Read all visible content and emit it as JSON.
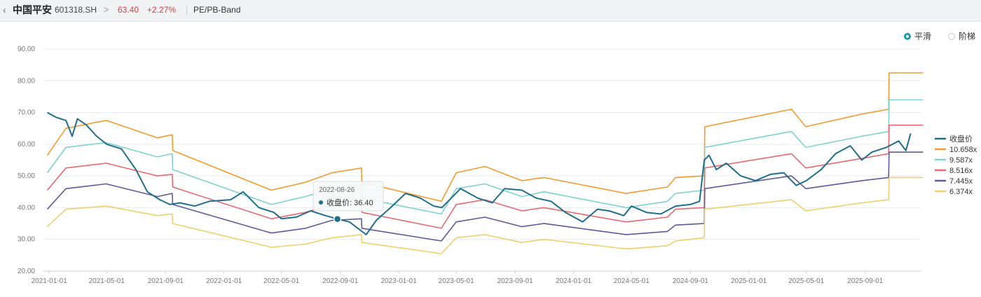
{
  "header": {
    "back_icon": "chevron-left-icon",
    "stock_name": "中国平安",
    "stock_code": "601318.SH",
    "chevron": ">",
    "price": "63.40",
    "change_pct": "+2.27%",
    "tool_name": "PE/PB-Band"
  },
  "toggle": {
    "smooth_label": "平滑",
    "step_label": "阶梯",
    "selected": "平滑"
  },
  "tooltip": {
    "date": "2022-08-26",
    "series_label": "收盘价",
    "value": "36.40",
    "at_x": "2022-08-26",
    "at_y": 36.4
  },
  "colors": {
    "price": "#1f6e8c",
    "band_10658": "#f29a2e",
    "band_9587": "#7fd0cf",
    "band_8516": "#e8696f",
    "band_7445": "#5b5a9b",
    "band_6374": "#efcf6c",
    "accent": "#1a9ab0",
    "up": "#e4393c"
  },
  "chart_data": {
    "type": "line",
    "title": "PE/PB-Band",
    "xlabel": "",
    "ylabel": "",
    "x_start": "2020-12-20",
    "x_end": "2025-12-26",
    "ylim": [
      20,
      90
    ],
    "yticks": [
      "20.00",
      "30.00",
      "40.00",
      "50.00",
      "60.00",
      "70.00",
      "80.00",
      "90.00"
    ],
    "xticks": [
      "2021-01-01",
      "2021-05-01",
      "2021-09-01",
      "2022-01-01",
      "2022-05-01",
      "2022-09-01",
      "2023-01-01",
      "2023-05-01",
      "2023-09-01",
      "2024-01-01",
      "2024-05-01",
      "2024-09-01",
      "2025-01-01",
      "2025-05-01",
      "2025-09-01"
    ],
    "grid": true,
    "legend_position": "right",
    "series": [
      {
        "name": "收盘价",
        "color": "#1f6e8c",
        "width": 2,
        "points": [
          [
            "2020-12-28",
            70.0
          ],
          [
            "2021-01-15",
            68.5
          ],
          [
            "2021-02-05",
            67.5
          ],
          [
            "2021-02-18",
            62.5
          ],
          [
            "2021-03-01",
            68.0
          ],
          [
            "2021-03-20",
            66.0
          ],
          [
            "2021-04-10",
            62.5
          ],
          [
            "2021-05-01",
            60.0
          ],
          [
            "2021-06-01",
            58.5
          ],
          [
            "2021-07-01",
            52.0
          ],
          [
            "2021-07-25",
            45.0
          ],
          [
            "2021-08-20",
            42.5
          ],
          [
            "2021-09-10",
            41.0
          ],
          [
            "2021-10-01",
            41.5
          ],
          [
            "2021-11-01",
            40.5
          ],
          [
            "2021-12-01",
            42.0
          ],
          [
            "2022-01-15",
            42.5
          ],
          [
            "2022-02-10",
            45.0
          ],
          [
            "2022-03-15",
            40.0
          ],
          [
            "2022-04-15",
            38.5
          ],
          [
            "2022-05-01",
            36.5
          ],
          [
            "2022-06-01",
            37.0
          ],
          [
            "2022-07-01",
            39.0
          ],
          [
            "2022-08-01",
            37.5
          ],
          [
            "2022-08-26",
            36.4
          ],
          [
            "2022-09-20",
            35.5
          ],
          [
            "2022-10-25",
            31.5
          ],
          [
            "2022-11-15",
            36.0
          ],
          [
            "2022-12-15",
            40.0
          ],
          [
            "2023-01-15",
            44.5
          ],
          [
            "2023-02-15",
            43.0
          ],
          [
            "2023-03-15",
            40.5
          ],
          [
            "2023-04-01",
            40.0
          ],
          [
            "2023-05-10",
            46.0
          ],
          [
            "2023-06-15",
            43.0
          ],
          [
            "2023-07-15",
            41.5
          ],
          [
            "2023-08-10",
            46.0
          ],
          [
            "2023-09-15",
            45.5
          ],
          [
            "2023-10-15",
            43.0
          ],
          [
            "2023-11-15",
            42.0
          ],
          [
            "2023-12-15",
            38.5
          ],
          [
            "2024-01-20",
            35.5
          ],
          [
            "2024-02-20",
            39.5
          ],
          [
            "2024-03-15",
            39.0
          ],
          [
            "2024-04-15",
            37.5
          ],
          [
            "2024-05-01",
            40.5
          ],
          [
            "2024-06-01",
            38.5
          ],
          [
            "2024-07-01",
            38.0
          ],
          [
            "2024-08-01",
            40.5
          ],
          [
            "2024-09-01",
            41.0
          ],
          [
            "2024-09-20",
            42.0
          ],
          [
            "2024-09-30",
            55.0
          ],
          [
            "2024-10-10",
            56.5
          ],
          [
            "2024-10-25",
            52.0
          ],
          [
            "2024-11-15",
            54.0
          ],
          [
            "2024-12-15",
            50.0
          ],
          [
            "2025-01-15",
            48.5
          ],
          [
            "2025-02-15",
            50.5
          ],
          [
            "2025-03-15",
            51.0
          ],
          [
            "2025-04-10",
            47.0
          ],
          [
            "2025-05-01",
            48.5
          ],
          [
            "2025-06-01",
            52.0
          ],
          [
            "2025-07-01",
            57.0
          ],
          [
            "2025-08-01",
            59.5
          ],
          [
            "2025-08-25",
            55.0
          ],
          [
            "2025-09-15",
            57.5
          ],
          [
            "2025-10-15",
            59.0
          ],
          [
            "2025-11-10",
            61.0
          ],
          [
            "2025-11-25",
            58.0
          ],
          [
            "2025-12-05",
            63.4
          ]
        ]
      },
      {
        "name": "10.658x",
        "color": "#f29a2e",
        "width": 1.6,
        "points": [
          [
            "2020-12-28",
            56.5
          ],
          [
            "2021-02-05",
            65.0
          ],
          [
            "2021-04-30",
            67.5
          ],
          [
            "2021-08-15",
            62.0
          ],
          [
            "2021-09-15",
            63.0
          ],
          [
            "2021-09-16",
            58.0
          ],
          [
            "2022-04-10",
            45.5
          ],
          [
            "2022-06-20",
            48.0
          ],
          [
            "2022-08-15",
            51.0
          ],
          [
            "2022-10-15",
            52.5
          ],
          [
            "2022-10-16",
            48.0
          ],
          [
            "2023-03-31",
            42.0
          ],
          [
            "2023-05-01",
            51.0
          ],
          [
            "2023-06-30",
            53.0
          ],
          [
            "2023-09-15",
            48.5
          ],
          [
            "2023-10-31",
            49.5
          ],
          [
            "2024-04-20",
            44.5
          ],
          [
            "2024-07-15",
            46.5
          ],
          [
            "2024-08-01",
            49.5
          ],
          [
            "2024-09-30",
            50.0
          ],
          [
            "2024-10-01",
            65.5
          ],
          [
            "2025-03-31",
            71.0
          ],
          [
            "2025-04-30",
            65.5
          ],
          [
            "2025-08-25",
            69.5
          ],
          [
            "2025-10-20",
            71.0
          ],
          [
            "2025-10-21",
            82.5
          ],
          [
            "2025-12-31",
            82.5
          ]
        ]
      },
      {
        "name": "9.587x",
        "color": "#7fd0cf",
        "width": 1.6,
        "points": [
          [
            "2020-12-28",
            51.0
          ],
          [
            "2021-02-05",
            59.0
          ],
          [
            "2021-04-30",
            60.5
          ],
          [
            "2021-08-15",
            56.0
          ],
          [
            "2021-09-15",
            57.0
          ],
          [
            "2021-09-16",
            52.0
          ],
          [
            "2022-04-10",
            41.0
          ],
          [
            "2022-06-20",
            43.5
          ],
          [
            "2022-08-15",
            46.0
          ],
          [
            "2022-10-15",
            47.5
          ],
          [
            "2022-10-16",
            43.0
          ],
          [
            "2023-03-31",
            38.0
          ],
          [
            "2023-05-01",
            46.0
          ],
          [
            "2023-06-30",
            47.5
          ],
          [
            "2023-09-15",
            43.5
          ],
          [
            "2023-10-31",
            45.0
          ],
          [
            "2024-04-20",
            40.0
          ],
          [
            "2024-07-15",
            42.0
          ],
          [
            "2024-08-01",
            44.5
          ],
          [
            "2024-09-30",
            45.5
          ],
          [
            "2024-10-01",
            59.0
          ],
          [
            "2025-03-31",
            64.0
          ],
          [
            "2025-04-30",
            59.0
          ],
          [
            "2025-08-25",
            62.5
          ],
          [
            "2025-10-20",
            64.0
          ],
          [
            "2025-10-21",
            74.0
          ],
          [
            "2025-12-31",
            74.0
          ]
        ]
      },
      {
        "name": "8.516x",
        "color": "#e8696f",
        "width": 1.6,
        "points": [
          [
            "2020-12-28",
            45.5
          ],
          [
            "2021-02-05",
            52.5
          ],
          [
            "2021-04-30",
            54.0
          ],
          [
            "2021-08-15",
            50.0
          ],
          [
            "2021-09-15",
            50.5
          ],
          [
            "2021-09-16",
            46.5
          ],
          [
            "2022-04-10",
            36.5
          ],
          [
            "2022-06-20",
            38.5
          ],
          [
            "2022-08-15",
            41.0
          ],
          [
            "2022-10-15",
            42.0
          ],
          [
            "2022-10-16",
            38.5
          ],
          [
            "2023-03-31",
            33.5
          ],
          [
            "2023-05-01",
            41.0
          ],
          [
            "2023-06-30",
            42.5
          ],
          [
            "2023-09-15",
            39.0
          ],
          [
            "2023-10-31",
            40.0
          ],
          [
            "2024-04-20",
            35.5
          ],
          [
            "2024-07-15",
            37.0
          ],
          [
            "2024-08-01",
            39.5
          ],
          [
            "2024-09-30",
            40.0
          ],
          [
            "2024-10-01",
            52.5
          ],
          [
            "2025-03-31",
            57.0
          ],
          [
            "2025-04-30",
            52.5
          ],
          [
            "2025-08-25",
            55.5
          ],
          [
            "2025-10-20",
            57.0
          ],
          [
            "2025-10-21",
            66.0
          ],
          [
            "2025-12-31",
            66.0
          ]
        ]
      },
      {
        "name": "7.445x",
        "color": "#5b5a9b",
        "width": 1.6,
        "points": [
          [
            "2020-12-28",
            39.5
          ],
          [
            "2021-02-05",
            46.0
          ],
          [
            "2021-04-30",
            47.5
          ],
          [
            "2021-08-15",
            43.5
          ],
          [
            "2021-09-15",
            44.5
          ],
          [
            "2021-09-16",
            41.0
          ],
          [
            "2022-04-10",
            32.0
          ],
          [
            "2022-06-20",
            33.5
          ],
          [
            "2022-08-15",
            36.0
          ],
          [
            "2022-10-15",
            36.5
          ],
          [
            "2022-10-16",
            33.5
          ],
          [
            "2023-03-31",
            29.5
          ],
          [
            "2023-05-01",
            35.5
          ],
          [
            "2023-06-30",
            37.0
          ],
          [
            "2023-09-15",
            34.0
          ],
          [
            "2023-10-31",
            35.0
          ],
          [
            "2024-04-20",
            31.5
          ],
          [
            "2024-07-15",
            32.5
          ],
          [
            "2024-08-01",
            34.5
          ],
          [
            "2024-09-30",
            35.0
          ],
          [
            "2024-10-01",
            46.0
          ],
          [
            "2025-03-31",
            50.0
          ],
          [
            "2025-04-30",
            46.0
          ],
          [
            "2025-08-25",
            48.5
          ],
          [
            "2025-10-20",
            49.5
          ],
          [
            "2025-10-21",
            57.5
          ],
          [
            "2025-12-31",
            57.5
          ]
        ]
      },
      {
        "name": "6.374x",
        "color": "#efcf6c",
        "width": 1.6,
        "points": [
          [
            "2020-12-28",
            34.0
          ],
          [
            "2021-02-05",
            39.5
          ],
          [
            "2021-04-30",
            40.5
          ],
          [
            "2021-08-15",
            37.5
          ],
          [
            "2021-09-15",
            38.0
          ],
          [
            "2021-09-16",
            35.0
          ],
          [
            "2022-04-10",
            27.5
          ],
          [
            "2022-06-20",
            28.5
          ],
          [
            "2022-08-15",
            30.5
          ],
          [
            "2022-10-15",
            31.5
          ],
          [
            "2022-10-16",
            29.0
          ],
          [
            "2023-03-31",
            25.5
          ],
          [
            "2023-05-01",
            30.5
          ],
          [
            "2023-06-30",
            31.5
          ],
          [
            "2023-09-15",
            29.0
          ],
          [
            "2023-10-31",
            30.0
          ],
          [
            "2024-04-20",
            27.0
          ],
          [
            "2024-07-15",
            28.0
          ],
          [
            "2024-08-01",
            29.5
          ],
          [
            "2024-09-30",
            30.5
          ],
          [
            "2024-10-01",
            39.5
          ],
          [
            "2025-03-31",
            42.5
          ],
          [
            "2025-04-30",
            39.0
          ],
          [
            "2025-08-25",
            41.5
          ],
          [
            "2025-10-20",
            42.5
          ],
          [
            "2025-10-21",
            49.5
          ],
          [
            "2025-12-31",
            49.5
          ]
        ]
      }
    ]
  }
}
